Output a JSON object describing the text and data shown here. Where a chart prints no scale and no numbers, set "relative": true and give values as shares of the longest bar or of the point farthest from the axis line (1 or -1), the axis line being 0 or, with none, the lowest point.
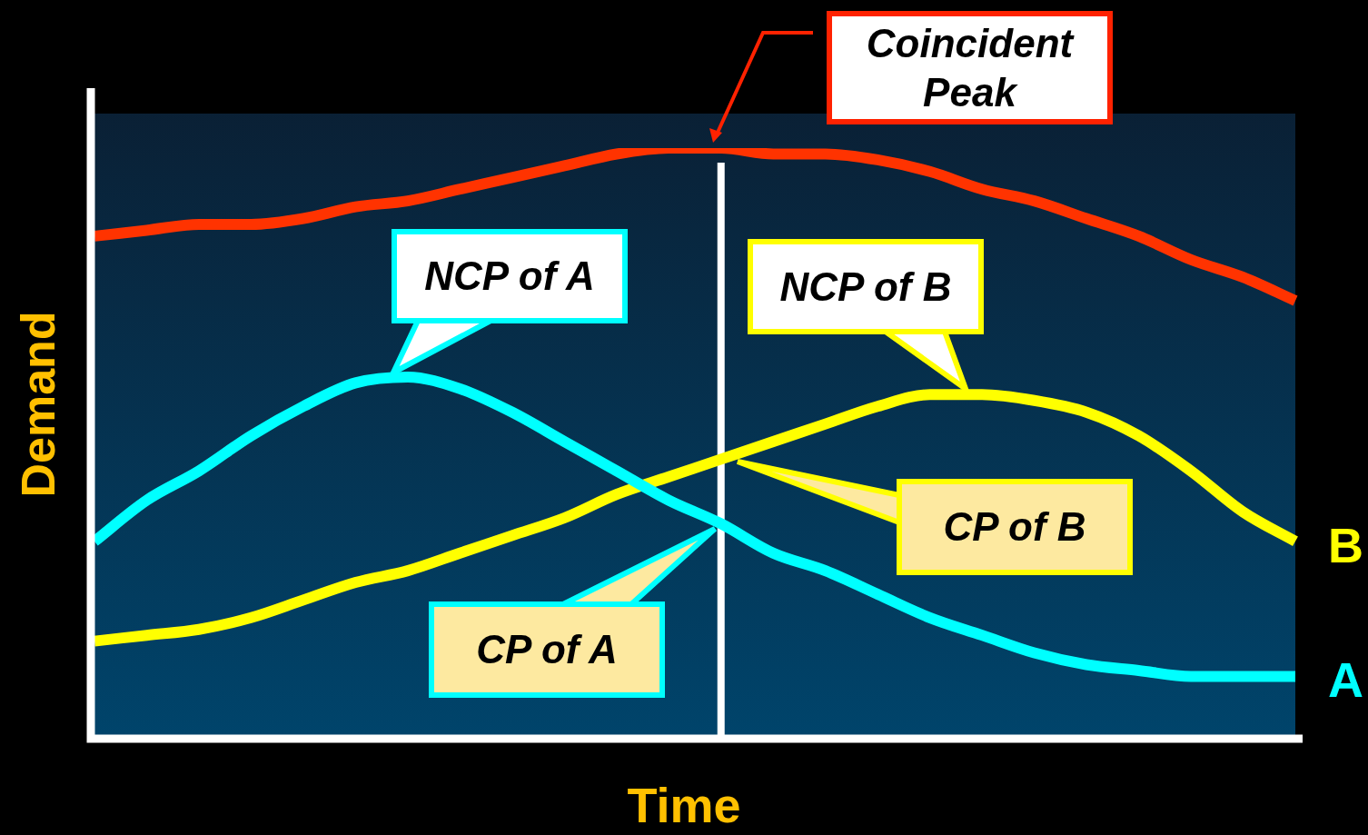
{
  "chart_data": {
    "type": "line",
    "relative": true,
    "xlabel": "Time",
    "ylabel": "Demand",
    "legend": false,
    "marker": "none",
    "line_style": "solid",
    "categories": [
      null,
      null,
      null,
      null,
      null,
      null,
      null,
      null,
      null,
      null,
      null,
      null,
      null,
      null,
      null,
      null,
      null,
      null,
      null,
      null,
      null,
      null,
      null,
      null
    ],
    "series": [
      {
        "color": "#ff3300",
        "values": [
          0.85,
          0.86,
          0.87,
          0.87,
          0.88,
          0.9,
          0.91,
          0.93,
          0.95,
          0.97,
          0.99,
          1,
          1,
          0.99,
          0.99,
          0.98,
          0.96,
          0.93,
          0.91,
          0.88,
          0.85,
          0.81,
          0.78,
          0.74
        ]
      },
      {
        "name": "A",
        "color": "#00ffff",
        "values": [
          0.33,
          0.4,
          0.45,
          0.51,
          0.56,
          0.6,
          0.61,
          0.59,
          0.55,
          0.5,
          0.45,
          0.4,
          0.36,
          0.31,
          0.28,
          0.24,
          0.2,
          0.17,
          0.14,
          0.12,
          0.11,
          0.1,
          0.1,
          0.1
        ]
      },
      {
        "name": "B",
        "color": "#ffff00",
        "values": [
          0.16,
          0.17,
          0.18,
          0.2,
          0.23,
          0.26,
          0.28,
          0.31,
          0.34,
          0.37,
          0.41,
          0.44,
          0.47,
          0.5,
          0.53,
          0.56,
          0.58,
          0.58,
          0.57,
          0.55,
          0.51,
          0.45,
          0.38,
          0.33
        ]
      }
    ],
    "annotations": [
      "Coincident Peak",
      "NCP of A",
      "NCP of B",
      "CP of A",
      "CP of B"
    ]
  }
}
